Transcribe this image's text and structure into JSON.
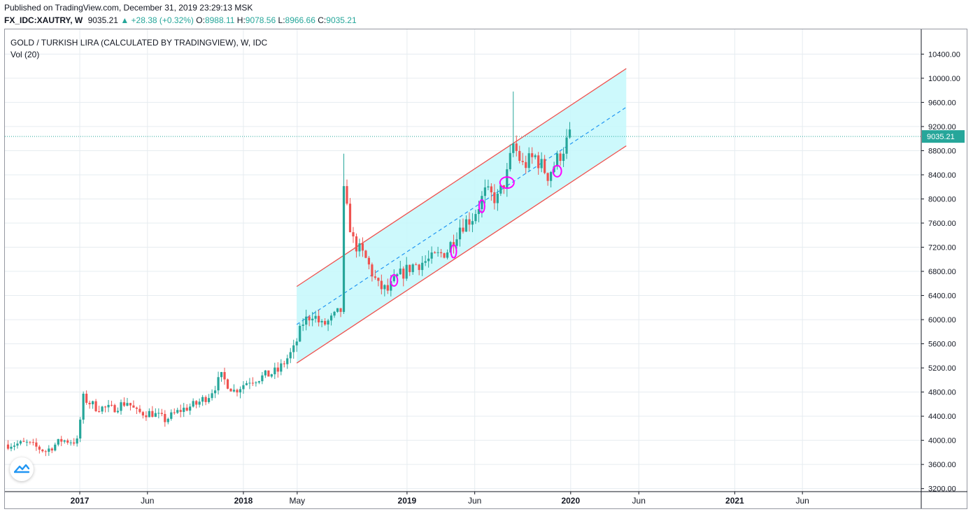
{
  "header": {
    "published": "Published on TradingView.com, December 31, 2019 23:29:13 MSK",
    "symbol": "FX_IDC:XAUTRY, W",
    "last": "9035.21",
    "change": "▲ +28.38 (+0.32%)",
    "o_label": "O:",
    "o": "8988.11",
    "h_label": "H:",
    "h": "9078.56",
    "l_label": "L:",
    "l": "8966.66",
    "c_label": "C:",
    "c": "9035.21"
  },
  "chart_title": "GOLD / TURKISH LIRA (CALCULATED BY TRADINGVIEW), W, IDC",
  "volume_label": "Vol (20)",
  "logo_icon": "tradingview-logo-icon",
  "colors": {
    "up": "#26a69a",
    "down": "#ef5350",
    "channel_line": "#ef5350",
    "channel_fill": "#c4f8fb",
    "midline": "#2196f3",
    "price_label": "#26a69a",
    "annotation": "#ff00ff",
    "grid": "#e6ecf0"
  },
  "chart_data": {
    "type": "candlestick",
    "symbol": "FX_IDC:XAUTRY",
    "interval": "W",
    "last_price": 9035.21,
    "last_price_label": "9035.21",
    "y_axis": {
      "ticks": [
        3200,
        3600,
        4000,
        4400,
        4800,
        5200,
        5600,
        6000,
        6400,
        6800,
        7200,
        7600,
        8000,
        8400,
        8800,
        9200,
        9600,
        10000,
        10400
      ],
      "tick_labels": [
        "3200.00",
        "3600.00",
        "4000.00",
        "4400.00",
        "4800.00",
        "5200.00",
        "5600.00",
        "6000.00",
        "6400.00",
        "6800.00",
        "7200.00",
        "7600.00",
        "8000.00",
        "8400.00",
        "8800.00",
        "9200.00",
        "9600.00",
        "10000.00",
        "10400.00"
      ],
      "range": [
        3150,
        10810
      ]
    },
    "x_axis": {
      "range": [
        "2016-07-18",
        "2022-02-21"
      ],
      "ticks": [
        {
          "date": "2017-01-01",
          "label": "2017",
          "bold": true
        },
        {
          "date": "2017-06-01",
          "label": "Jun",
          "bold": false
        },
        {
          "date": "2018-01-01",
          "label": "2018",
          "bold": true
        },
        {
          "date": "2018-05-01",
          "label": "May",
          "bold": false
        },
        {
          "date": "2019-01-01",
          "label": "2019",
          "bold": true
        },
        {
          "date": "2019-06-01",
          "label": "Jun",
          "bold": false
        },
        {
          "date": "2020-01-01",
          "label": "2020",
          "bold": true
        },
        {
          "date": "2020-06-01",
          "label": "Jun",
          "bold": false
        },
        {
          "date": "2021-01-01",
          "label": "2021",
          "bold": true
        },
        {
          "date": "2021-06-01",
          "label": "Jun",
          "bold": false
        }
      ]
    },
    "grid": true,
    "price_path": [
      [
        "2016-07-25",
        3930
      ],
      [
        "2016-09-05",
        3950
      ],
      [
        "2016-10-17",
        3820
      ],
      [
        "2016-11-21",
        4000
      ],
      [
        "2016-12-26",
        3980
      ],
      [
        "2017-01-09",
        4700
      ],
      [
        "2017-02-06",
        4550
      ],
      [
        "2017-03-13",
        4520
      ],
      [
        "2017-04-17",
        4640
      ],
      [
        "2017-05-08",
        4460
      ],
      [
        "2017-06-12",
        4450
      ],
      [
        "2017-07-10",
        4340
      ],
      [
        "2017-08-14",
        4500
      ],
      [
        "2017-09-18",
        4600
      ],
      [
        "2017-10-16",
        4750
      ],
      [
        "2017-11-13",
        5050
      ],
      [
        "2017-12-11",
        4820
      ],
      [
        "2018-01-15",
        5000
      ],
      [
        "2018-02-12",
        5050
      ],
      [
        "2018-03-19",
        5150
      ],
      [
        "2018-04-23",
        5500
      ],
      [
        "2018-05-14",
        5950
      ],
      [
        "2018-06-04",
        6100
      ],
      [
        "2018-06-25",
        5900
      ],
      [
        "2018-07-16",
        6000
      ],
      [
        "2018-08-06",
        6150
      ],
      [
        "2018-08-13",
        8100
      ],
      [
        "2018-08-20",
        7800
      ],
      [
        "2018-09-03",
        7300
      ],
      [
        "2018-10-01",
        7000
      ],
      [
        "2018-10-29",
        6550
      ],
      [
        "2018-11-19",
        6480
      ],
      [
        "2018-12-10",
        6700
      ],
      [
        "2019-01-14",
        6900
      ],
      [
        "2019-02-25",
        7000
      ],
      [
        "2019-04-01",
        7150
      ],
      [
        "2019-04-29",
        7550
      ],
      [
        "2019-05-27",
        7700
      ],
      [
        "2019-06-24",
        8100
      ],
      [
        "2019-07-22",
        8000
      ],
      [
        "2019-08-12",
        8400
      ],
      [
        "2019-08-26",
        8900
      ],
      [
        "2019-09-16",
        8550
      ],
      [
        "2019-10-14",
        8700
      ],
      [
        "2019-11-11",
        8400
      ],
      [
        "2019-12-02",
        8650
      ],
      [
        "2019-12-30",
        9035
      ]
    ],
    "regression_channel": {
      "start": "2018-04-30",
      "end": "2020-05-04",
      "upper": [
        6550,
        10160
      ],
      "middle": [
        5920,
        9520
      ],
      "lower": [
        5280,
        8880
      ]
    }
  }
}
